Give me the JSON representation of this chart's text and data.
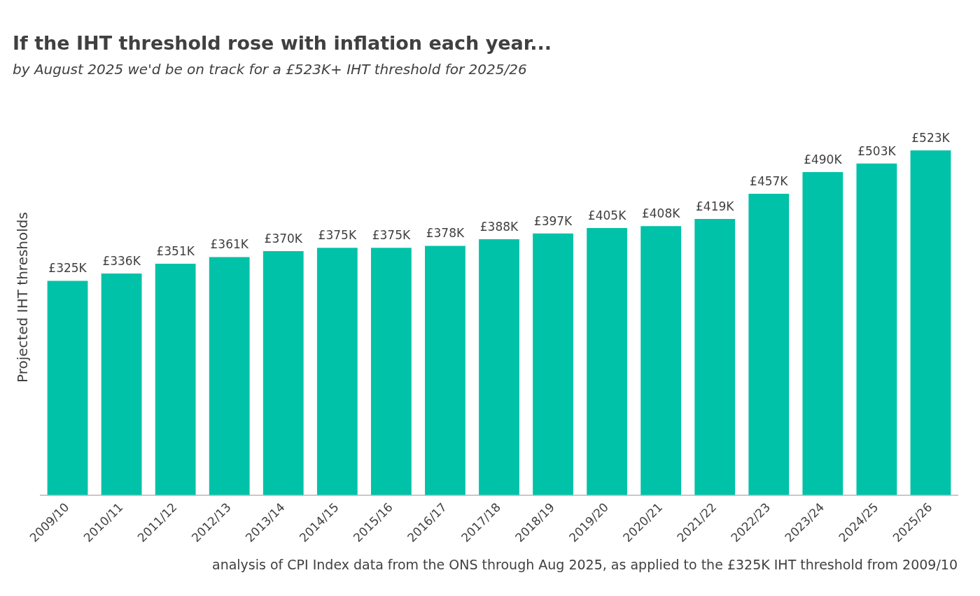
{
  "chart_data": {
    "type": "bar",
    "title": "If the IHT threshold rose with inflation each year...",
    "subtitle": "by August 2025 we'd be on track for a £523K+ IHT threshold for 2025/26",
    "ylabel": "Projected IHT thresholds",
    "categories": [
      "2009/10",
      "2010/11",
      "2011/12",
      "2012/13",
      "2013/14",
      "2014/15",
      "2015/16",
      "2016/17",
      "2017/18",
      "2018/19",
      "2019/20",
      "2020/21",
      "2021/22",
      "2022/23",
      "2023/24",
      "2024/25",
      "2025/26"
    ],
    "values": [
      325,
      336,
      351,
      361,
      370,
      375,
      375,
      378,
      388,
      397,
      405,
      408,
      419,
      457,
      490,
      503,
      523
    ],
    "value_labels": [
      "£325K",
      "£336K",
      "£351K",
      "£361K",
      "£370K",
      "£375K",
      "£375K",
      "£378K",
      "£388K",
      "£397K",
      "£405K",
      "£408K",
      "£419K",
      "£457K",
      "£490K",
      "£503K",
      "£523K"
    ],
    "color": "#00c2a8",
    "grid": false,
    "legend": false,
    "annotations": [
      "analysis of CPI Index data from the ONS through Aug 2025, as applied to the £325K IHT threshold from 2009/10"
    ]
  }
}
